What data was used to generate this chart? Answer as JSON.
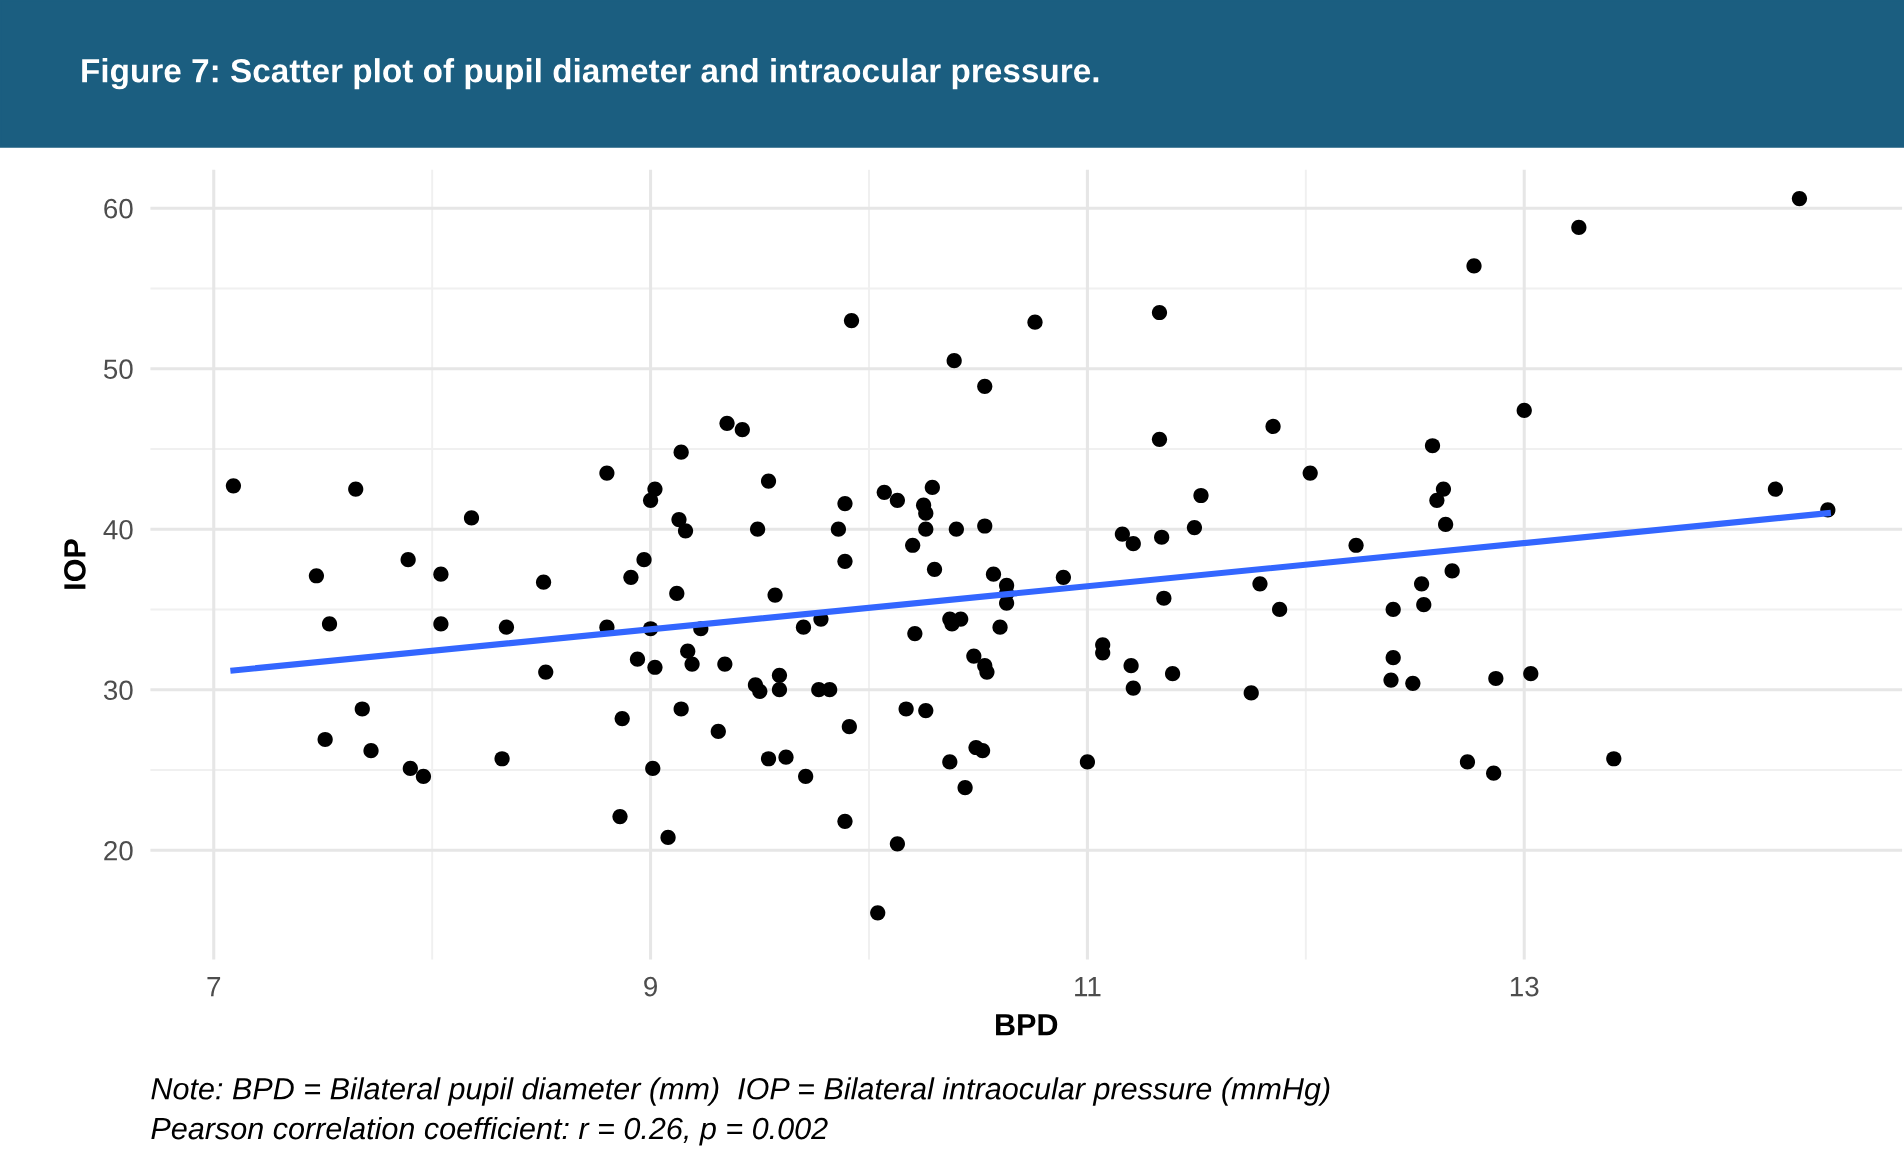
{
  "chart_data": {
    "type": "scatter",
    "title": "Figure 7: Scatter plot of pupil diameter and intraocular pressure.",
    "xlabel": "BPD",
    "ylabel": "IOP",
    "annotations": [
      "Note: BPD = Bilateral pupil diameter (mm)  IOP = Bilateral intraocular pressure (mmHg)",
      "Pearson correlation coefficient: r = 0.26, p = 0.002"
    ],
    "xlim": [
      6.71,
      14.73
    ],
    "ylim": [
      13.2,
      62.4
    ],
    "xticks": [
      7,
      9,
      11,
      13
    ],
    "yticks": [
      20,
      30,
      40,
      50,
      60
    ],
    "grid": true,
    "series": [
      {
        "marker": "circle",
        "color": "#000000",
        "x": [
          7.09,
          7.47,
          7.53,
          7.51,
          7.65,
          7.68,
          7.72,
          7.89,
          7.9,
          7.96,
          8.04,
          8.04,
          8.18,
          8.32,
          8.34,
          8.51,
          8.52,
          8.8,
          8.8,
          8.86,
          8.87,
          8.91,
          8.94,
          8.97,
          9.0,
          9.02,
          9.02,
          9.01,
          9.0,
          9.08,
          9.12,
          9.14,
          9.13,
          9.16,
          9.17,
          9.14,
          9.19,
          9.23,
          9.31,
          9.34,
          9.35,
          9.42,
          9.49,
          9.54,
          9.48,
          9.5,
          9.57,
          9.59,
          9.59,
          9.54,
          9.62,
          9.7,
          9.71,
          9.77,
          9.82,
          9.89,
          9.86,
          9.89,
          9.92,
          9.91,
          9.89,
          9.78,
          10.04,
          10.07,
          10.13,
          10.13,
          10.17,
          10.2,
          10.21,
          10.25,
          10.26,
          10.26,
          10.29,
          10.26,
          10.3,
          10.37,
          10.38,
          10.37,
          10.39,
          10.4,
          10.42,
          10.44,
          10.48,
          10.49,
          10.52,
          10.53,
          10.53,
          10.54,
          10.53,
          10.57,
          10.6,
          10.63,
          10.63,
          10.63,
          10.76,
          10.89,
          11.0,
          11.07,
          11.07,
          11.16,
          11.2,
          11.21,
          11.21,
          11.33,
          11.33,
          11.34,
          11.35,
          11.39,
          11.49,
          11.52,
          11.75,
          11.79,
          11.85,
          11.88,
          12.02,
          12.23,
          12.4,
          12.4,
          12.39,
          12.49,
          12.54,
          12.53,
          12.58,
          12.6,
          12.63,
          12.64,
          12.67,
          12.74,
          12.77,
          12.87,
          12.86,
          13.0,
          13.03,
          13.25,
          13.41,
          14.15,
          14.26,
          14.39
        ],
        "values": [
          42.7,
          37.1,
          34.1,
          26.9,
          42.5,
          28.8,
          26.2,
          38.1,
          25.1,
          24.6,
          37.2,
          34.1,
          40.7,
          25.7,
          33.9,
          36.7,
          31.1,
          33.9,
          43.5,
          22.1,
          28.2,
          37.0,
          31.9,
          38.1,
          41.8,
          42.5,
          31.4,
          25.1,
          33.8,
          20.8,
          36.0,
          44.8,
          40.6,
          39.9,
          32.4,
          28.8,
          31.6,
          33.8,
          27.4,
          31.6,
          46.6,
          46.2,
          40.0,
          43.0,
          30.3,
          29.9,
          35.9,
          30.9,
          30.0,
          25.7,
          25.8,
          33.9,
          24.6,
          30.0,
          30.0,
          41.6,
          40.0,
          38.0,
          53.0,
          27.7,
          21.8,
          34.4,
          16.1,
          42.3,
          41.8,
          20.4,
          28.8,
          39.0,
          33.5,
          41.5,
          41.0,
          28.7,
          42.6,
          40.0,
          37.5,
          34.4,
          34.1,
          25.5,
          50.5,
          40.0,
          34.4,
          23.9,
          32.1,
          26.4,
          26.2,
          40.2,
          31.5,
          31.1,
          48.9,
          37.2,
          33.9,
          36.5,
          35.4,
          36.0,
          52.9,
          37.0,
          25.5,
          32.8,
          32.3,
          39.7,
          31.5,
          39.1,
          30.1,
          53.5,
          45.6,
          39.5,
          35.7,
          31.0,
          40.1,
          42.1,
          29.8,
          36.6,
          46.4,
          35.0,
          43.5,
          39.0,
          35.0,
          32.0,
          30.6,
          30.4,
          35.3,
          36.6,
          45.2,
          41.8,
          42.5,
          40.3,
          37.4,
          25.5,
          56.4,
          30.7,
          24.8,
          47.4,
          31.0,
          58.8,
          25.7,
          42.5,
          60.6,
          41.2
        ]
      },
      {
        "type": "line",
        "color": "#3366ff",
        "x": [
          7.09,
          14.39
        ],
        "values": [
          31.2,
          41.0
        ]
      }
    ]
  }
}
